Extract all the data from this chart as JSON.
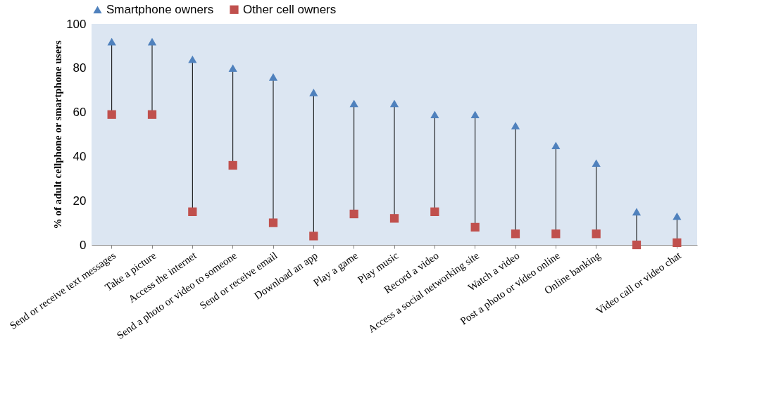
{
  "chart_data": {
    "type": "scatter",
    "ylabel": "% of adult cellphone or smartphone users",
    "categories": [
      "Send or receive text messages",
      "Take a picture",
      "Access the internet",
      "Send a photo or video to someone",
      "Send or receive email",
      "Download an app",
      "Play a game",
      "Play music",
      "Record a video",
      "Access a social networking site",
      "Watch a video",
      "Post a photo or video online",
      "Online banking",
      null,
      "Video call or video chat"
    ],
    "series": [
      {
        "name": "Smartphone owners",
        "color": "#4f81bd",
        "marker": "triangle",
        "values": [
          92,
          92,
          84,
          80,
          76,
          69,
          64,
          64,
          59,
          59,
          54,
          45,
          37,
          15,
          13
        ]
      },
      {
        "name": "Other cell owners",
        "color": "#c0504d",
        "marker": "square",
        "values": [
          59,
          59,
          15,
          36,
          10,
          4,
          14,
          12,
          15,
          8,
          5,
          5,
          5,
          0,
          1
        ]
      }
    ],
    "ylim": [
      0,
      100
    ],
    "yticks": [
      0,
      20,
      40,
      60,
      80,
      100
    ],
    "grid": false,
    "legend": "top"
  }
}
